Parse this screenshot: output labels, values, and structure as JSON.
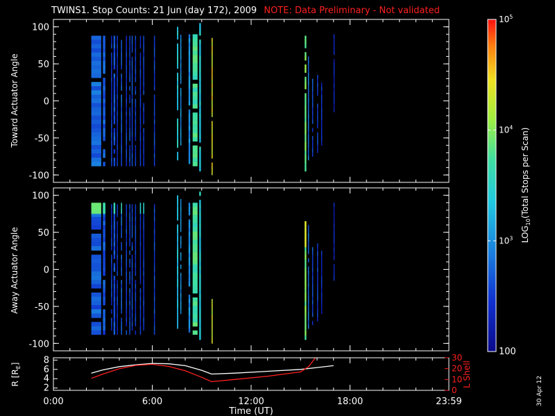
{
  "title": "TWINS1. Stop Counts: 21 Jun (day 172), 2009",
  "note": "NOTE: Data Preliminary - Not validated",
  "date_stamp": "30 Apr 12",
  "colors": {
    "background": "#000000",
    "axes": "#ffffff",
    "note": "#ff2020",
    "r_line": "#ffffff",
    "l_line": "#ff2020"
  },
  "chart_data": [
    {
      "type": "heatmap",
      "ylabel": "Toward Actuator Angle",
      "ylim": [
        -110,
        110
      ],
      "yticks": [
        100,
        50,
        0,
        -50,
        -100
      ],
      "xlim": [
        0,
        24
      ],
      "columns": [
        {
          "t0": 2.3,
          "t1": 2.9,
          "y0": -88,
          "y1": 88,
          "log": 2.75
        },
        {
          "t0": 3.0,
          "t1": 3.15,
          "y0": -88,
          "y1": 88,
          "log": 2.7
        },
        {
          "t0": 3.5,
          "t1": 3.55,
          "y0": -88,
          "y1": 88,
          "log": 2.5
        },
        {
          "t0": 3.65,
          "t1": 3.75,
          "y0": -88,
          "y1": 88,
          "log": 2.6
        },
        {
          "t0": 3.85,
          "t1": 3.9,
          "y0": -88,
          "y1": 88,
          "log": 2.45
        },
        {
          "t0": 4.1,
          "t1": 4.15,
          "y0": -88,
          "y1": 88,
          "log": 2.7
        },
        {
          "t0": 4.4,
          "t1": 4.45,
          "y0": -88,
          "y1": 88,
          "log": 2.5
        },
        {
          "t0": 4.6,
          "t1": 4.65,
          "y0": -88,
          "y1": 88,
          "log": 2.55
        },
        {
          "t0": 4.75,
          "t1": 4.8,
          "y0": -88,
          "y1": 88,
          "log": 2.6
        },
        {
          "t0": 4.95,
          "t1": 5.0,
          "y0": -88,
          "y1": 88,
          "log": 2.5
        },
        {
          "t0": 5.25,
          "t1": 5.3,
          "y0": -88,
          "y1": 88,
          "log": 2.45
        },
        {
          "t0": 5.45,
          "t1": 5.5,
          "y0": -88,
          "y1": 88,
          "log": 2.5
        },
        {
          "t0": 6.1,
          "t1": 6.15,
          "y0": -88,
          "y1": 88,
          "log": 2.55
        },
        {
          "t0": 7.5,
          "t1": 7.58,
          "y0": -80,
          "y1": 100,
          "log": 3.4
        },
        {
          "t0": 7.7,
          "t1": 7.75,
          "y0": -60,
          "y1": 95,
          "log": 3.0
        },
        {
          "t0": 8.2,
          "t1": 8.3,
          "y0": -85,
          "y1": 90,
          "log": 3.0
        },
        {
          "t0": 8.45,
          "t1": 8.75,
          "y0": -88,
          "y1": 90,
          "log": 3.7
        },
        {
          "t0": 8.85,
          "t1": 8.95,
          "y0": -95,
          "y1": 105,
          "log": 3.4
        },
        {
          "t0": 9.6,
          "t1": 9.65,
          "y0": -100,
          "y1": 85,
          "log": 4.4
        },
        {
          "t0": 15.25,
          "t1": 15.35,
          "y0": -95,
          "y1": 88,
          "log": 3.9
        },
        {
          "t0": 15.45,
          "t1": 15.5,
          "y0": -80,
          "y1": 60,
          "log": 2.8
        },
        {
          "t0": 15.7,
          "t1": 15.75,
          "y0": -75,
          "y1": 30,
          "log": 2.6
        },
        {
          "t0": 16.0,
          "t1": 16.05,
          "y0": -70,
          "y1": 35,
          "log": 2.5
        },
        {
          "t0": 16.25,
          "t1": 16.3,
          "y0": -60,
          "y1": 25,
          "log": 2.4
        },
        {
          "t0": 17.0,
          "t1": 17.05,
          "y0": -15,
          "y1": 90,
          "log": 2.3
        }
      ]
    },
    {
      "type": "heatmap",
      "ylabel": "Away Actuator Angle",
      "ylim": [
        -110,
        110
      ],
      "yticks": [
        100,
        50,
        0,
        -50,
        -100
      ],
      "xlim": [
        0,
        24
      ],
      "columns": [
        {
          "t0": 2.3,
          "t1": 2.9,
          "y0": -88,
          "y1": 88,
          "log": 2.7
        },
        {
          "t0": 3.0,
          "t1": 3.15,
          "y0": -88,
          "y1": 88,
          "log": 2.65
        },
        {
          "t0": 3.5,
          "t1": 3.55,
          "y0": -88,
          "y1": 88,
          "log": 2.5
        },
        {
          "t0": 3.65,
          "t1": 3.75,
          "y0": -88,
          "y1": 88,
          "log": 2.6
        },
        {
          "t0": 3.85,
          "t1": 3.9,
          "y0": -88,
          "y1": 88,
          "log": 2.45
        },
        {
          "t0": 4.1,
          "t1": 4.15,
          "y0": -88,
          "y1": 88,
          "log": 2.7
        },
        {
          "t0": 4.4,
          "t1": 4.45,
          "y0": -88,
          "y1": 88,
          "log": 2.5
        },
        {
          "t0": 4.6,
          "t1": 4.65,
          "y0": -88,
          "y1": 88,
          "log": 2.55
        },
        {
          "t0": 4.75,
          "t1": 4.8,
          "y0": -88,
          "y1": 88,
          "log": 2.6
        },
        {
          "t0": 4.95,
          "t1": 5.0,
          "y0": -88,
          "y1": 88,
          "log": 2.5
        },
        {
          "t0": 5.25,
          "t1": 5.3,
          "y0": -88,
          "y1": 88,
          "log": 2.45
        },
        {
          "t0": 5.45,
          "t1": 5.5,
          "y0": -88,
          "y1": 88,
          "log": 2.5
        },
        {
          "t0": 6.1,
          "t1": 6.15,
          "y0": -88,
          "y1": 88,
          "log": 2.55
        },
        {
          "t0": 7.5,
          "t1": 7.58,
          "y0": -80,
          "y1": 100,
          "log": 3.3
        },
        {
          "t0": 7.7,
          "t1": 7.75,
          "y0": -60,
          "y1": 95,
          "log": 3.0
        },
        {
          "t0": 8.2,
          "t1": 8.3,
          "y0": -85,
          "y1": 90,
          "log": 3.0
        },
        {
          "t0": 8.45,
          "t1": 8.75,
          "y0": -88,
          "y1": 90,
          "log": 3.75
        },
        {
          "t0": 8.85,
          "t1": 8.95,
          "y0": -95,
          "y1": 105,
          "log": 3.4
        },
        {
          "t0": 9.6,
          "t1": 9.65,
          "y0": -100,
          "y1": -40,
          "log": 4.3
        },
        {
          "t0": 15.25,
          "t1": 15.35,
          "y0": -95,
          "y1": 65,
          "log": 3.9
        },
        {
          "t0": 15.45,
          "t1": 15.5,
          "y0": -80,
          "y1": 60,
          "log": 2.8
        },
        {
          "t0": 15.7,
          "t1": 15.75,
          "y0": -75,
          "y1": 30,
          "log": 2.6
        },
        {
          "t0": 16.0,
          "t1": 16.05,
          "y0": -70,
          "y1": 35,
          "log": 2.5
        },
        {
          "t0": 16.25,
          "t1": 16.3,
          "y0": -60,
          "y1": 25,
          "log": 2.4
        },
        {
          "t0": 17.0,
          "t1": 17.05,
          "y0": -15,
          "y1": 90,
          "log": 2.3
        }
      ],
      "hot_bands": [
        {
          "t0": 2.3,
          "t1": 2.9,
          "y0": 75,
          "y1": 90,
          "log": 3.9
        },
        {
          "t0": 3.0,
          "t1": 3.15,
          "y0": 75,
          "y1": 90,
          "log": 3.7
        },
        {
          "t0": 3.65,
          "t1": 3.75,
          "y0": 75,
          "y1": 90,
          "log": 3.6
        },
        {
          "t0": 4.1,
          "t1": 4.15,
          "y0": 75,
          "y1": 90,
          "log": 3.6
        },
        {
          "t0": 5.25,
          "t1": 5.3,
          "y0": 75,
          "y1": 90,
          "log": 3.5
        },
        {
          "t0": 5.45,
          "t1": 5.5,
          "y0": 75,
          "y1": 90,
          "log": 3.5
        },
        {
          "t0": 15.25,
          "t1": 15.35,
          "y0": 30,
          "y1": 65,
          "log": 4.4
        }
      ]
    },
    {
      "type": "line",
      "xlabel": "Time (UT)",
      "xticks": [
        "0:00",
        "6:00",
        "12:00",
        "18:00",
        "23:59"
      ],
      "xlim": [
        0,
        24
      ],
      "ylabel": "R [RE]",
      "ylim": [
        1.5,
        8.5
      ],
      "yticks": [
        2,
        4,
        6,
        8
      ],
      "y2label": "L Shell",
      "y2lim": [
        0,
        30
      ],
      "y2ticks": [
        0,
        10,
        20,
        30
      ],
      "series": [
        {
          "axis": "left",
          "color": "#ffffff",
          "x": [
            2.3,
            3.0,
            4.0,
            5.0,
            6.0,
            7.0,
            8.0,
            9.0,
            9.6,
            11.0,
            13.0,
            15.0,
            16.0,
            17.0
          ],
          "y": [
            5.2,
            5.9,
            6.6,
            7.0,
            7.3,
            7.2,
            6.8,
            5.8,
            5.0,
            5.2,
            5.6,
            6.0,
            6.4,
            6.8
          ]
        },
        {
          "axis": "right",
          "color": "#ff2020",
          "x": [
            2.3,
            3.0,
            4.0,
            5.0,
            6.0,
            7.0,
            8.0,
            9.0,
            9.6,
            11.0,
            13.0,
            15.0,
            15.5,
            16.0
          ],
          "y": [
            11,
            15,
            20,
            23,
            24,
            22,
            18,
            12,
            8,
            10,
            13,
            17,
            22,
            32
          ]
        }
      ]
    },
    {
      "type": "colorbar",
      "label": "LOG10(Total Stops per Scan)",
      "label_main": "LOG",
      "label_sub": "10",
      "label_rest": "(Total Stops per Scan)",
      "scale": "log",
      "range": [
        100,
        100000
      ],
      "tick_bottom": "100",
      "ticks": [
        {
          "base": "10",
          "exp": "5",
          "log": 5
        },
        {
          "base": "10",
          "exp": "4",
          "log": 4
        },
        {
          "base": "10",
          "exp": "3",
          "log": 3
        }
      ]
    }
  ]
}
